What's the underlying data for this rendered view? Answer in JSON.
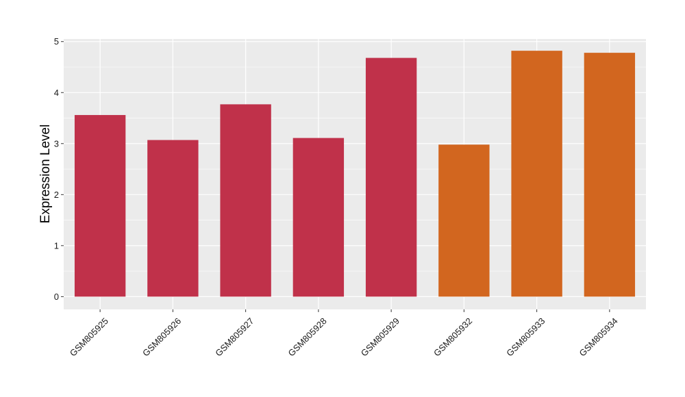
{
  "chart_data": {
    "type": "bar",
    "title": "",
    "xlabel": "",
    "ylabel": "Expression Level",
    "categories": [
      "GSM805925",
      "GSM805926",
      "GSM805927",
      "GSM805928",
      "GSM805929",
      "GSM805932",
      "GSM805933",
      "GSM805934"
    ],
    "values": [
      3.56,
      3.07,
      3.77,
      3.11,
      4.68,
      2.98,
      4.82,
      4.78
    ],
    "bar_colors": [
      "#C0314A",
      "#C0314A",
      "#C0314A",
      "#C0314A",
      "#C0314A",
      "#D2661F",
      "#D2661F",
      "#D2661F"
    ],
    "ylim": [
      -0.25,
      5.05
    ],
    "yticks": [
      0,
      1,
      2,
      3,
      4,
      5
    ],
    "grid": true,
    "legend": "none",
    "panel_background": "#EBEBEB",
    "gridline_color": "#FFFFFF"
  }
}
